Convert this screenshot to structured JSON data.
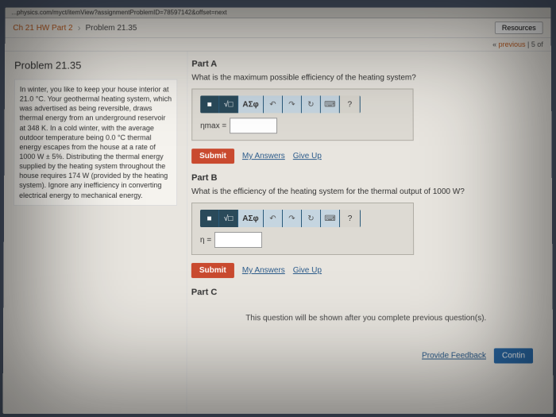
{
  "url_fragment": "...physics.com/myct/itemView?assignmentProblemID=78597142&offset=next",
  "breadcrumb": {
    "chapter": "Ch 21 HW Part 2",
    "problem": "Problem 21.35"
  },
  "resources_btn": "Resources",
  "nav": {
    "previous": "previous",
    "counter": "5 of"
  },
  "title": "Problem 21.35",
  "problem_text": "In winter, you like to keep your house interior at 21.0 °C. Your geothermal heating system, which was advertised as being reversible, draws thermal energy from an underground reservoir at 348 K. In a cold winter, with the average outdoor temperature being 0.0 °C thermal energy escapes from the house at a rate of 1000 W ± 5%. Distributing the thermal energy supplied by the heating system throughout the house requires 174 W (provided by the heating system). Ignore any inefficiency in converting electrical energy to mechanical energy.",
  "partA": {
    "label": "Part A",
    "question": "What is the maximum possible efficiency of the heating system?",
    "var": "ηmax =",
    "value": ""
  },
  "partB": {
    "label": "Part B",
    "question": "What is the efficiency of the heating system for the thermal output of 1000 W?",
    "var": "η =",
    "value": ""
  },
  "partC": {
    "label": "Part C",
    "message": "This question will be shown after you complete previous question(s)."
  },
  "toolbar": {
    "template": "■",
    "sqrt": "√□",
    "greek": "ΑΣφ",
    "undo": "↶",
    "redo": "↷",
    "reset": "↻",
    "keyboard": "⌨",
    "help": "?"
  },
  "buttons": {
    "submit": "Submit",
    "my_answers": "My Answers",
    "give_up": "Give Up",
    "provide_feedback": "Provide Feedback",
    "continue": "Contin"
  },
  "colors": {
    "accent_orange": "#c94a2f",
    "accent_blue": "#2a6aa8",
    "link_blue": "#2a5a8a",
    "breadcrumb_orange": "#b8591e",
    "toolbar_blue": "#3a6a8a",
    "panel_bg": "#dddad3",
    "page_bg": "#e8e5df"
  }
}
